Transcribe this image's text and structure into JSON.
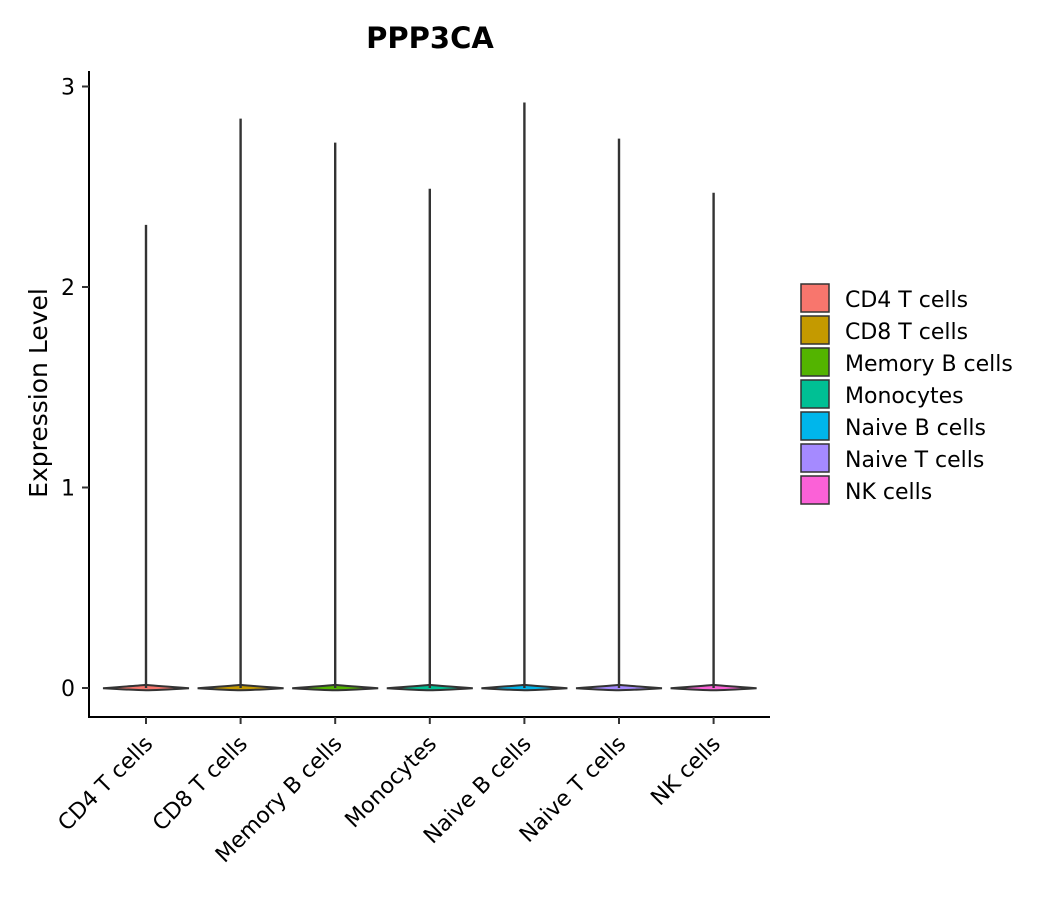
{
  "chart_data": {
    "type": "violin",
    "title": "PPP3CA",
    "xlabel": "",
    "ylabel": "Expression Level",
    "ylim": [
      -0.14,
      3.07
    ],
    "yticks": [
      0,
      1,
      2,
      3
    ],
    "ytick_labels": [
      "0",
      "1",
      "2",
      "3"
    ],
    "grid": false,
    "legend_position": "right",
    "categories": [
      "CD4 T cells",
      "CD8 T cells",
      "Memory B cells",
      "Monocytes",
      "Naive B cells",
      "Naive T cells",
      "NK cells"
    ],
    "max_values": [
      2.31,
      2.84,
      2.72,
      2.49,
      2.92,
      2.74,
      2.47
    ],
    "median_values": [
      0,
      0,
      0,
      0,
      0,
      0,
      0
    ],
    "colors": [
      "#F8766D",
      "#C49A00",
      "#53B400",
      "#00C094",
      "#00B6EB",
      "#A58AFF",
      "#FB61D7"
    ],
    "outline_color": "#333333",
    "legend": {
      "entries": [
        "CD4 T cells",
        "CD8 T cells",
        "Memory B cells",
        "Monocytes",
        "Naive B cells",
        "Naive T cells",
        "NK cells"
      ]
    }
  }
}
